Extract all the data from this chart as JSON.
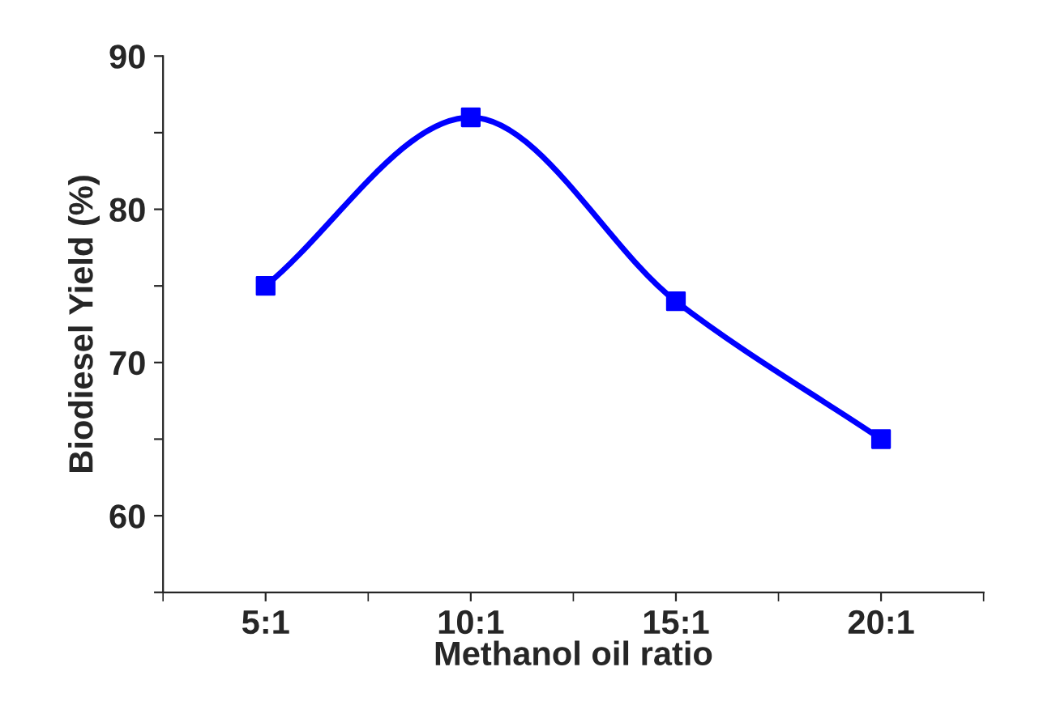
{
  "chart_data": {
    "type": "line",
    "xlabel": "Methanol oil ratio",
    "ylabel": "Biodiesel Yield (%)",
    "categories": [
      "5:1",
      "10:1",
      "15:1",
      "20:1"
    ],
    "series": [
      {
        "color": "#0000ff",
        "values": [
          75,
          86,
          74,
          65
        ]
      }
    ],
    "ylim": [
      55,
      90
    ],
    "yticks": [
      {
        "value": 55,
        "label": null
      },
      60,
      {
        "value": 65,
        "label": null
      },
      70,
      {
        "value": 75,
        "label": null
      },
      80,
      {
        "value": 85,
        "label": null
      },
      90
    ],
    "marker": "square",
    "line_style": "solid",
    "grid": false,
    "legend": false
  }
}
